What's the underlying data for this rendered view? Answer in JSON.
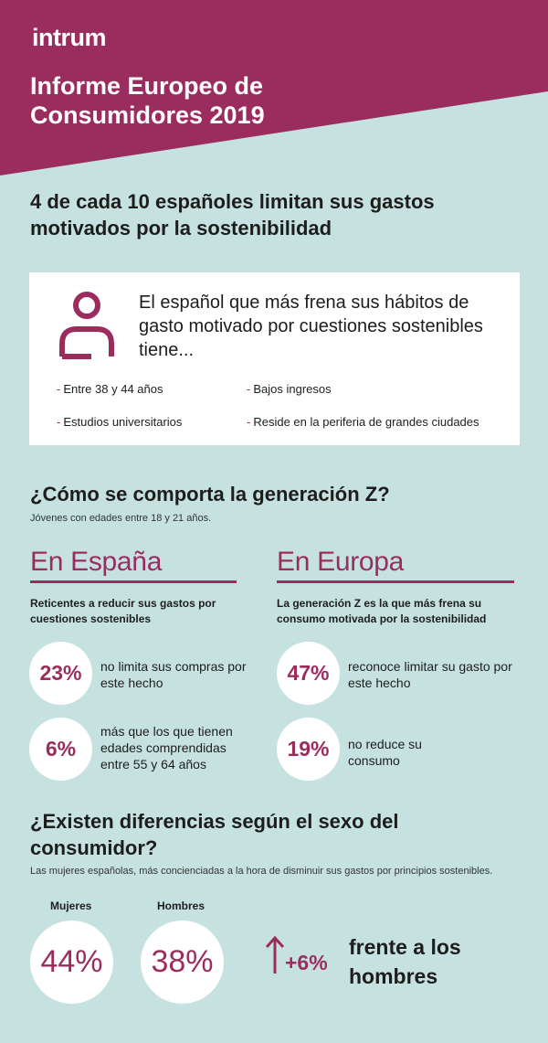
{
  "brand": {
    "logo": "intrum",
    "primary_color": "#9b2d5e",
    "background_color": "#c6e2e0"
  },
  "header": {
    "title": "Informe Europeo de Consumidores 2019"
  },
  "headline": "4 de cada 10 españoles limitan sus gastos motivados por la sostenibilidad",
  "profile": {
    "icon": "person-icon",
    "lead": "El español que más frena sus hábitos de gasto motivado por cuestiones sostenibles tiene...",
    "traits": [
      "Entre 38 y 44 años",
      "Bajos ingresos",
      "Estudios universitarios",
      "Reside en la periferia de grandes ciudades"
    ]
  },
  "genz": {
    "title": "¿Cómo se comporta la generación Z?",
    "subtitle": "Jóvenes con edades entre 18 y 21 años.",
    "spain": {
      "title": "En España",
      "description": "Reticentes a reducir sus gastos por cuestiones sostenibles",
      "stats": [
        {
          "value": "23%",
          "text": "no limita sus compras por este hecho"
        },
        {
          "value": "6%",
          "text": "más que los que tienen edades comprendidas entre 55 y 64 años"
        }
      ]
    },
    "europe": {
      "title": "En Europa",
      "description": "La generación Z es la que más frena su consumo motivada por la sostenibilidad",
      "stats": [
        {
          "value": "47%",
          "text": "reconoce limitar su gasto por este hecho"
        },
        {
          "value": "19%",
          "text": "no reduce su consumo"
        }
      ]
    }
  },
  "gender": {
    "title": "¿Existen diferencias según el sexo del consumidor?",
    "subtitle": "Las mujeres españolas, más concienciadas a la hora de disminuir sus gastos por principios sostenibles.",
    "women": {
      "label": "Mujeres",
      "value": "44%"
    },
    "men": {
      "label": "Hombres",
      "value": "38%"
    },
    "difference": {
      "icon": "arrow-up-icon",
      "value": "+6%",
      "text": "frente a los hombres"
    }
  }
}
